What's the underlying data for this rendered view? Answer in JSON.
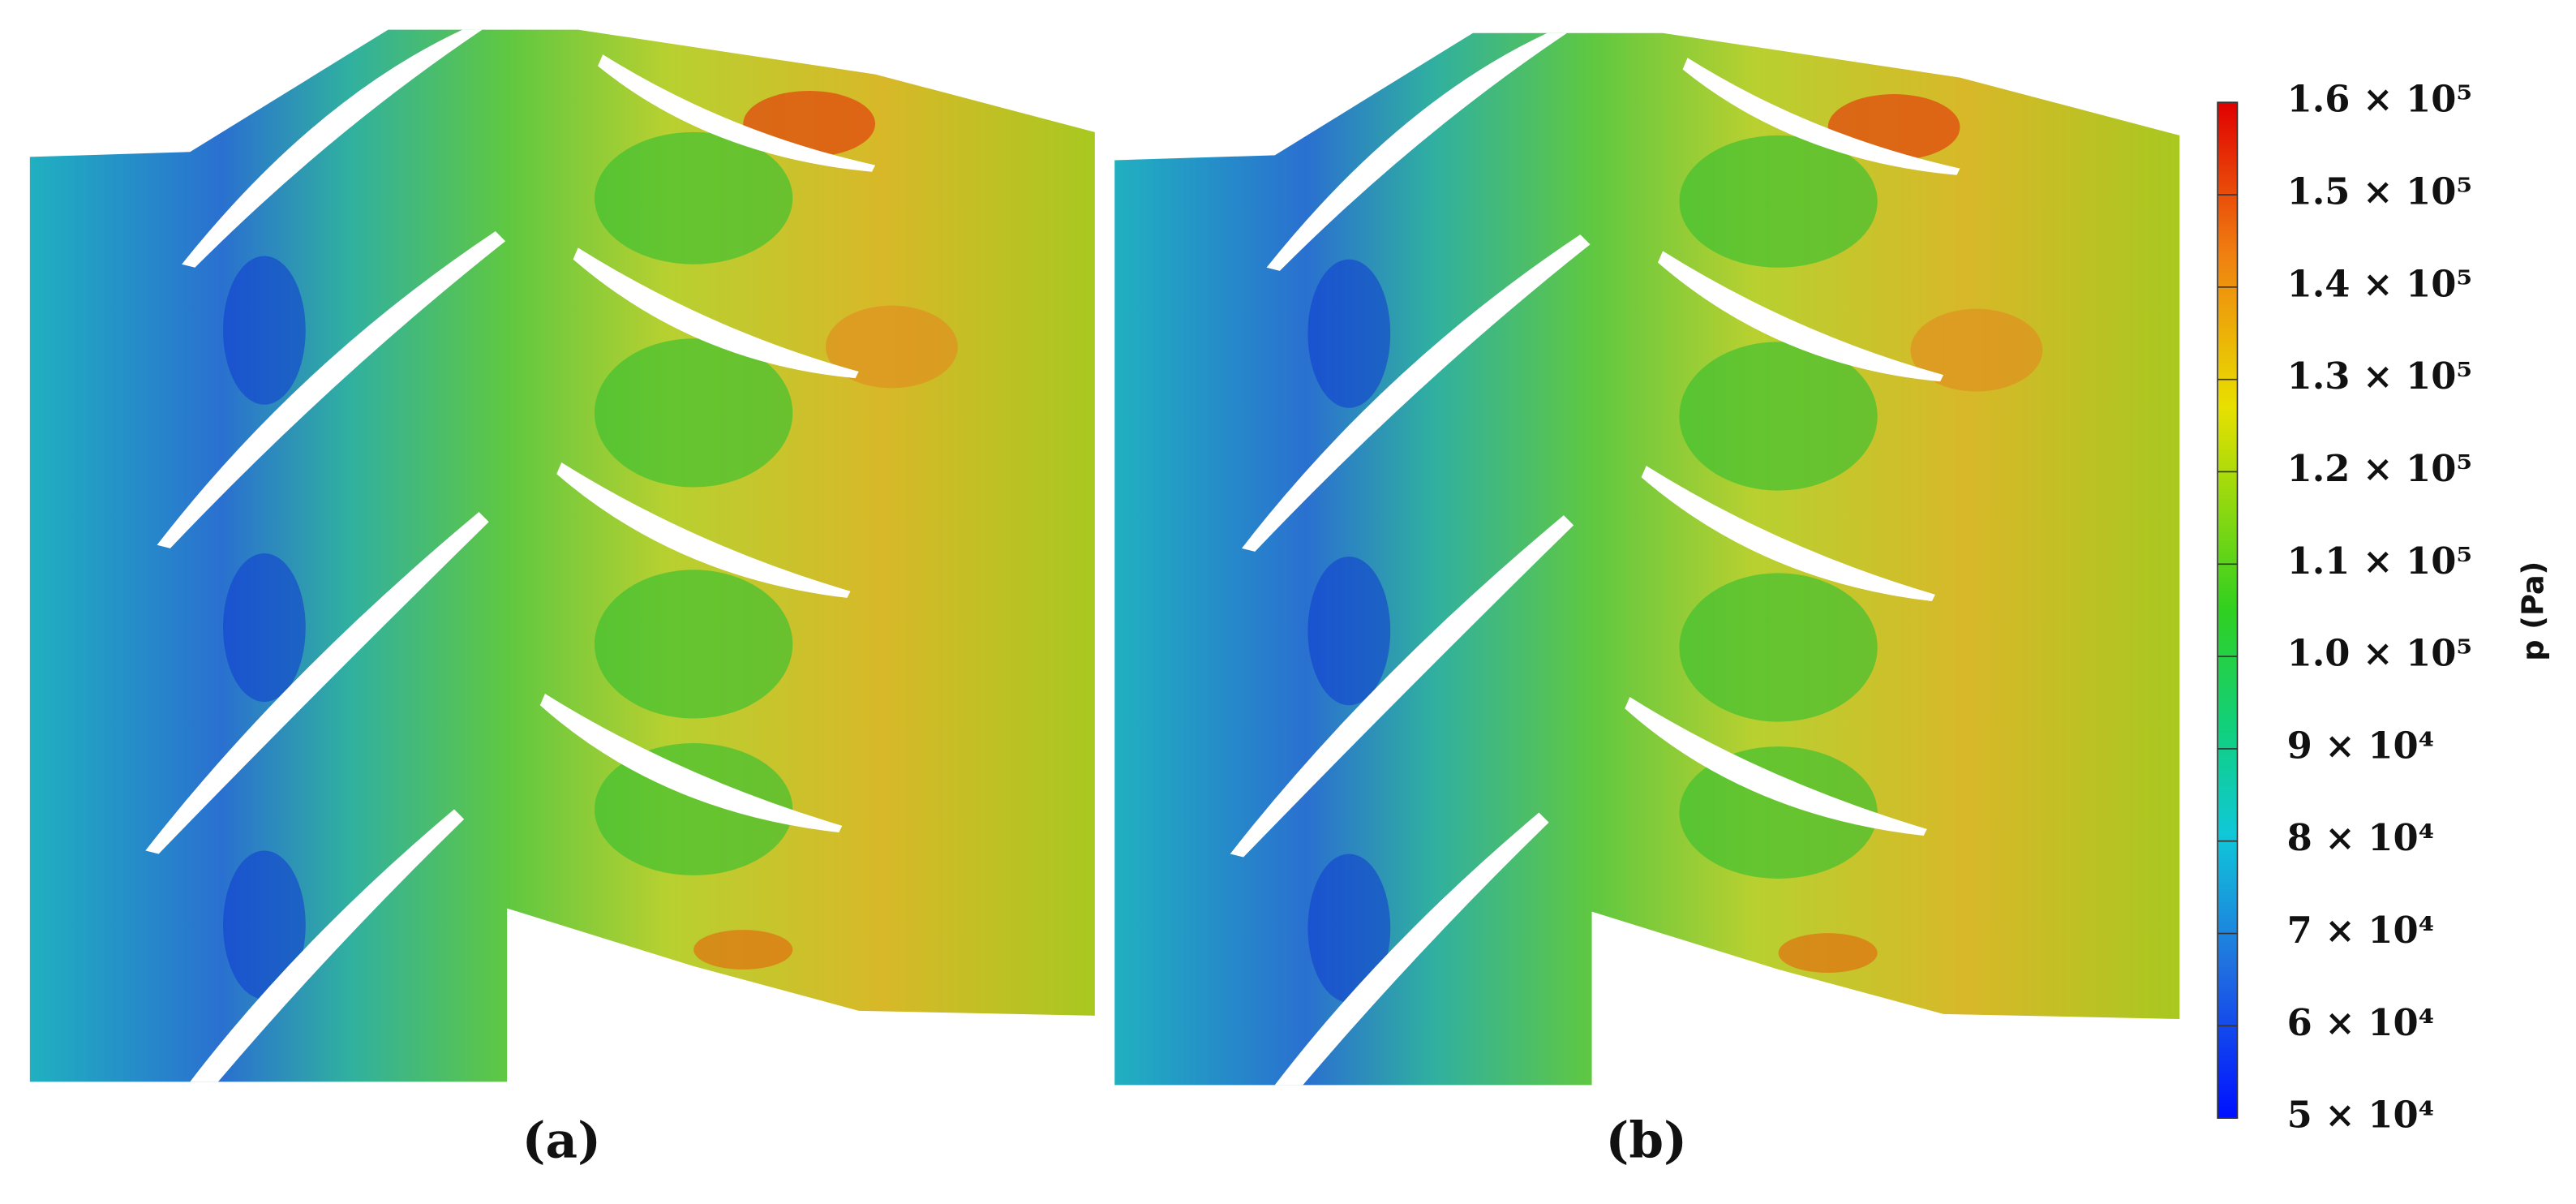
{
  "panels": [
    {
      "label": "(a)"
    },
    {
      "label": "(b)"
    }
  ],
  "colorbar": {
    "title": "p (Pa)",
    "ticks": [
      {
        "value": 160000,
        "label": "1.6 × 10⁵"
      },
      {
        "value": 150000,
        "label": "1.5 × 10⁵"
      },
      {
        "value": 140000,
        "label": "1.4 × 10⁵"
      },
      {
        "value": 130000,
        "label": "1.3 × 10⁵"
      },
      {
        "value": 120000,
        "label": "1.2 × 10⁵"
      },
      {
        "value": 110000,
        "label": "1.1 × 10⁵"
      },
      {
        "value": 100000,
        "label": "1.0 × 10⁵"
      },
      {
        "value": 90000,
        "label": "9 × 10⁴"
      },
      {
        "value": 80000,
        "label": "8 × 10⁴"
      },
      {
        "value": 70000,
        "label": "7 × 10⁴"
      },
      {
        "value": 60000,
        "label": "6 × 10⁴"
      },
      {
        "value": 50000,
        "label": "5 × 10⁴"
      }
    ]
  }
}
